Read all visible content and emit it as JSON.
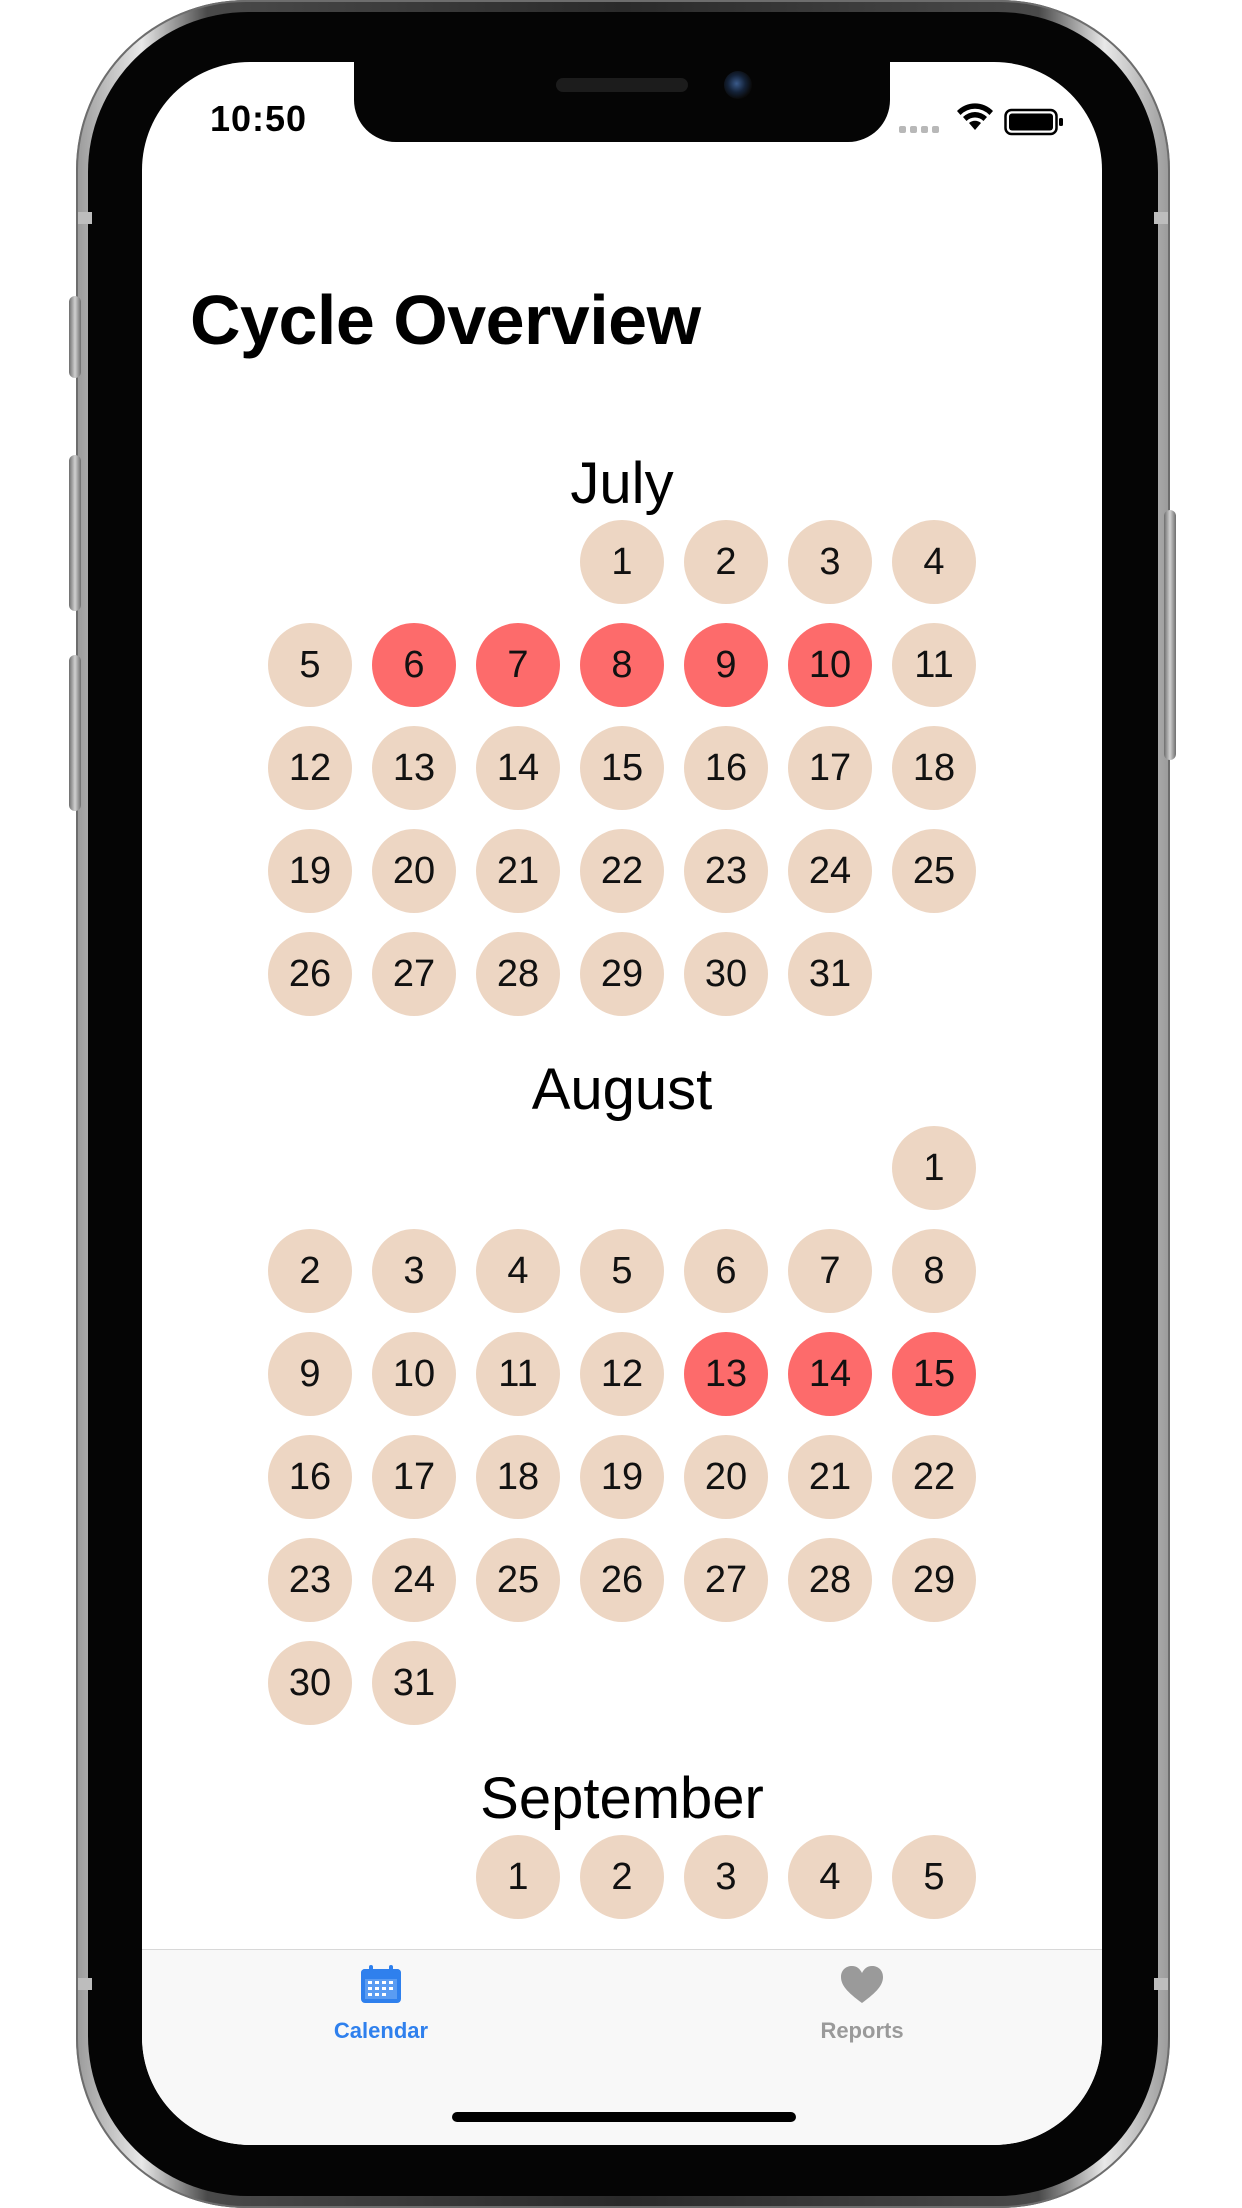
{
  "status_bar": {
    "time": "10:50",
    "wifi_icon": "wifi-icon",
    "battery_icon": "battery-icon"
  },
  "page": {
    "title": "Cycle Overview"
  },
  "calendar": {
    "colors": {
      "normal_day": "#edd6c3",
      "period_day": "#fd6b6b"
    },
    "months": [
      {
        "name": "July",
        "start_weekday": 3,
        "days_shown": 31,
        "period_days": [
          6,
          7,
          8,
          9,
          10
        ]
      },
      {
        "name": "August",
        "start_weekday": 6,
        "days_shown": 31,
        "period_days": [
          13,
          14,
          15
        ]
      },
      {
        "name": "September",
        "start_weekday": 2,
        "days_shown": 5,
        "period_days": []
      }
    ]
  },
  "tab_bar": {
    "tabs": [
      {
        "label": "Calendar",
        "icon": "calendar-icon",
        "active": true,
        "color": "#2f80ed"
      },
      {
        "label": "Reports",
        "icon": "heart-icon",
        "active": false,
        "color": "#9a9a9a"
      }
    ]
  }
}
